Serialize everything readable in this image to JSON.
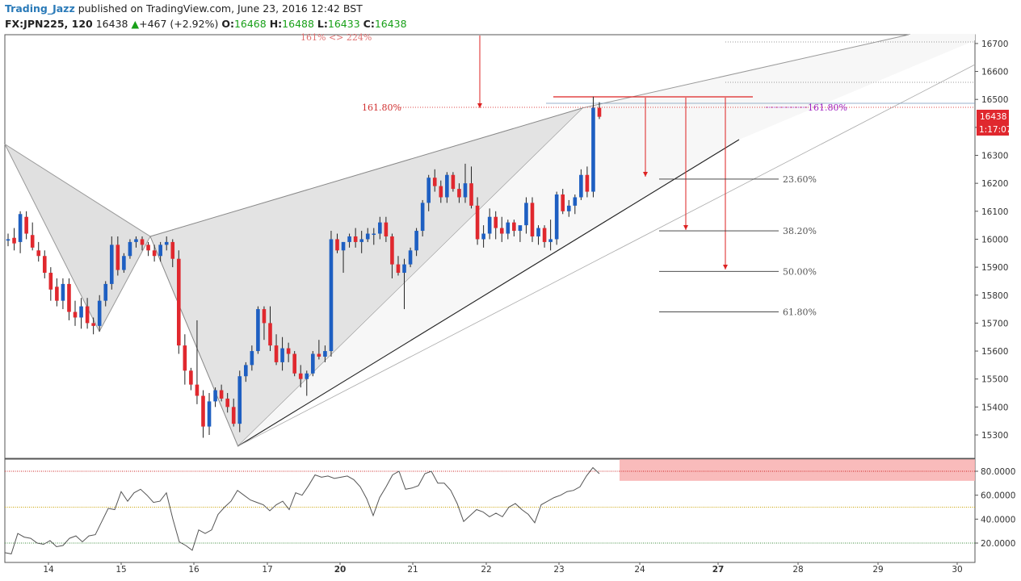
{
  "header": {
    "author": "Trading_Jazz",
    "published": "published on TradingView.com, June 23, 2016 12:42 BST",
    "symbol": "FX:JPN225, 120",
    "last": "16438",
    "change_arrow": "▲",
    "change": "+467 (+2.92%)",
    "o_label": "O:",
    "o": "16468",
    "h_label": "H:",
    "h": "16488",
    "l_label": "L:",
    "l": "16433",
    "c_label": "C:",
    "c": "16438"
  },
  "chart_data": [
    {
      "type": "candlestick",
      "symbol": "FX:JPN225",
      "timeframe": "120",
      "x_ticks": [
        "14",
        "15",
        "16",
        "17",
        "20",
        "21",
        "22",
        "23",
        "24",
        "27",
        "28",
        "29",
        "30"
      ],
      "bold_x_ticks": [
        "20",
        "27"
      ],
      "y_ticks": [
        15300,
        15400,
        15500,
        15600,
        15700,
        15800,
        15900,
        16000,
        16100,
        16200,
        16300,
        16400,
        16500,
        16600,
        16700
      ],
      "ylim": [
        15230,
        16730
      ],
      "last_price_label": "16438",
      "countdown_label": "1:17:07",
      "candles_ohlc": [
        [
          15995,
          16020,
          15975,
          16000
        ],
        [
          16005,
          16040,
          15960,
          15985
        ],
        [
          15990,
          16100,
          15950,
          16090
        ],
        [
          16080,
          16100,
          16000,
          16020
        ],
        [
          16015,
          16060,
          15960,
          15970
        ],
        [
          15960,
          15990,
          15920,
          15940
        ],
        [
          15940,
          15960,
          15860,
          15880
        ],
        [
          15880,
          15900,
          15780,
          15820
        ],
        [
          15830,
          15860,
          15760,
          15780
        ],
        [
          15780,
          15860,
          15750,
          15840
        ],
        [
          15840,
          15860,
          15710,
          15740
        ],
        [
          15740,
          15780,
          15690,
          15720
        ],
        [
          15720,
          15790,
          15680,
          15760
        ],
        [
          15760,
          15790,
          15680,
          15700
        ],
        [
          15700,
          15720,
          15660,
          15690
        ],
        [
          15690,
          15800,
          15670,
          15780
        ],
        [
          15780,
          15850,
          15760,
          15840
        ],
        [
          15840,
          16010,
          15820,
          15980
        ],
        [
          15980,
          16010,
          15870,
          15890
        ],
        [
          15890,
          15950,
          15880,
          15940
        ],
        [
          15940,
          16000,
          15930,
          15990
        ],
        [
          15990,
          16010,
          15970,
          16000
        ],
        [
          16000,
          16010,
          15960,
          15980
        ],
        [
          15980,
          15990,
          15940,
          15960
        ],
        [
          15960,
          15980,
          15920,
          15940
        ],
        [
          15940,
          15990,
          15920,
          15980
        ],
        [
          15980,
          16010,
          15960,
          15990
        ],
        [
          15990,
          16000,
          15900,
          15930
        ],
        [
          15930,
          15960,
          15590,
          15620
        ],
        [
          15620,
          15660,
          15480,
          15530
        ],
        [
          15530,
          15540,
          15460,
          15480
        ],
        [
          15480,
          15710,
          15410,
          15440
        ],
        [
          15440,
          15460,
          15290,
          15330
        ],
        [
          15330,
          15450,
          15300,
          15420
        ],
        [
          15420,
          15470,
          15400,
          15460
        ],
        [
          15460,
          15480,
          15420,
          15430
        ],
        [
          15430,
          15450,
          15380,
          15400
        ],
        [
          15400,
          15430,
          15330,
          15340
        ],
        [
          15340,
          15530,
          15310,
          15510
        ],
        [
          15510,
          15560,
          15490,
          15550
        ],
        [
          15550,
          15620,
          15530,
          15600
        ],
        [
          15600,
          15760,
          15590,
          15750
        ],
        [
          15750,
          15760,
          15640,
          15700
        ],
        [
          15700,
          15760,
          15600,
          15620
        ],
        [
          15620,
          15660,
          15550,
          15560
        ],
        [
          15560,
          15650,
          15530,
          15610
        ],
        [
          15610,
          15630,
          15560,
          15590
        ],
        [
          15590,
          15600,
          15510,
          15520
        ],
        [
          15520,
          15550,
          15470,
          15500
        ],
        [
          15500,
          15530,
          15440,
          15520
        ],
        [
          15520,
          15600,
          15510,
          15590
        ],
        [
          15590,
          15640,
          15570,
          15580
        ],
        [
          15580,
          15620,
          15560,
          15600
        ],
        [
          15600,
          16030,
          15580,
          16000
        ],
        [
          16000,
          16020,
          15950,
          15960
        ],
        [
          15960,
          15990,
          15880,
          15990
        ],
        [
          15990,
          16020,
          15970,
          16010
        ],
        [
          16010,
          16040,
          15970,
          15990
        ],
        [
          15990,
          16030,
          15950,
          16000
        ],
        [
          16000,
          16040,
          15990,
          16020
        ],
        [
          16020,
          16040,
          15980,
          16020
        ],
        [
          16020,
          16080,
          16000,
          16060
        ],
        [
          16060,
          16080,
          15990,
          16010
        ],
        [
          16010,
          16020,
          15860,
          15910
        ],
        [
          15910,
          15940,
          15870,
          15880
        ],
        [
          15880,
          15930,
          15750,
          15910
        ],
        [
          15910,
          15970,
          15900,
          15960
        ],
        [
          15960,
          16040,
          15940,
          16030
        ],
        [
          16030,
          16140,
          16010,
          16130
        ],
        [
          16130,
          16230,
          16100,
          16220
        ],
        [
          16220,
          16250,
          16170,
          16190
        ],
        [
          16190,
          16210,
          16130,
          16150
        ],
        [
          16150,
          16240,
          16130,
          16230
        ],
        [
          16230,
          16240,
          16170,
          16180
        ],
        [
          16180,
          16200,
          16130,
          16150
        ],
        [
          16150,
          16270,
          16130,
          16200
        ],
        [
          16200,
          16260,
          16110,
          16120
        ],
        [
          16120,
          16150,
          15980,
          16000
        ],
        [
          16000,
          16050,
          15970,
          16020
        ],
        [
          16020,
          16110,
          16000,
          16080
        ],
        [
          16080,
          16100,
          16000,
          16040
        ],
        [
          16040,
          16080,
          15990,
          16020
        ],
        [
          16020,
          16070,
          16000,
          16060
        ],
        [
          16060,
          16070,
          16010,
          16030
        ],
        [
          16030,
          16040,
          15990,
          16050
        ],
        [
          16050,
          16150,
          16020,
          16130
        ],
        [
          16130,
          16150,
          15990,
          16010
        ],
        [
          16010,
          16050,
          15980,
          16040
        ],
        [
          16040,
          16050,
          15970,
          15990
        ],
        [
          15990,
          16070,
          15960,
          16000
        ],
        [
          16000,
          16170,
          15980,
          16160
        ],
        [
          16160,
          16180,
          16090,
          16100
        ],
        [
          16100,
          16140,
          16080,
          16120
        ],
        [
          16120,
          16160,
          16090,
          16150
        ],
        [
          16150,
          16250,
          16140,
          16230
        ],
        [
          16230,
          16260,
          16150,
          16170
        ],
        [
          16170,
          16510,
          16150,
          16470
        ],
        [
          16470,
          16490,
          16430,
          16438
        ]
      ],
      "harmonic_pattern_points": [
        {
          "date": "13",
          "price": 16340
        },
        {
          "date": "14.7",
          "price": 15670
        },
        {
          "date": "15.4",
          "price": 16010
        },
        {
          "date": "16.6",
          "price": 15260
        },
        {
          "date": "23.3",
          "price": 16470
        }
      ],
      "annotations": [
        "161% <> 224%",
        "161.80%",
        "161.80%"
      ],
      "fibonacci_levels": [
        {
          "label": "23.60%",
          "price": 16215
        },
        {
          "label": "38.20%",
          "price": 16030
        },
        {
          "label": "50.00%",
          "price": 15885
        },
        {
          "label": "61.80%",
          "price": 15740
        }
      ]
    },
    {
      "type": "line",
      "name": "",
      "y_ticks": [
        20.0,
        40.0,
        60.0,
        80.0
      ],
      "y_tick_labels": [
        "20.0000",
        "40.0000",
        "60.0000",
        "80.0000"
      ],
      "ylim": [
        8,
        90
      ],
      "reference_lines": [
        80,
        50,
        20
      ],
      "overbought_zone": [
        72,
        90
      ],
      "values": [
        12,
        11,
        28,
        25,
        24,
        20,
        19,
        22,
        17,
        18,
        24,
        26,
        21,
        26,
        27,
        38,
        49,
        48,
        63,
        55,
        62,
        65,
        60,
        54,
        55,
        62,
        40,
        21,
        18,
        14,
        31,
        28,
        31,
        44,
        50,
        55,
        64,
        60,
        56,
        54,
        52,
        47,
        52,
        55,
        48,
        62,
        60,
        68,
        77,
        75,
        76,
        74,
        75,
        76,
        73,
        67,
        57,
        43,
        58,
        67,
        77,
        80,
        65,
        66,
        68,
        78,
        80,
        70,
        70,
        64,
        53,
        38,
        43,
        48,
        46,
        42,
        45,
        42,
        50,
        53,
        48,
        44,
        37,
        52,
        55,
        58,
        60,
        63,
        64,
        67,
        76,
        83,
        78
      ]
    }
  ]
}
